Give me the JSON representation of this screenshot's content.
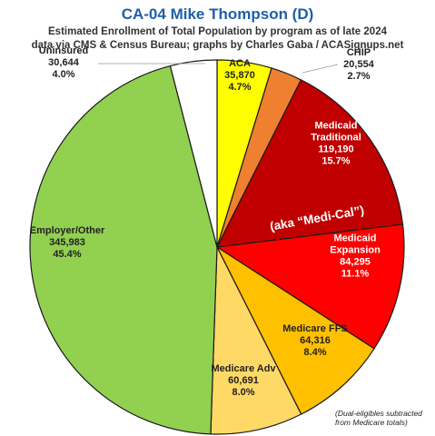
{
  "title": "CA-04 Mike Thompson (D)",
  "subtitle_lines": [
    "Estimated Enrollment of Total Population by program as of late 2024",
    "data via CMS & Census Bureau; graphs by Charles Gaba / ACASignups.net"
  ],
  "annotation_aka": "(aka “Medi-Cal”)",
  "note_lines": [
    "(Dual-eligibles subtracted",
    "from Medicare totals)"
  ],
  "chart_data": {
    "type": "pie",
    "title": "CA-04 Mike Thompson (D)",
    "slices": [
      {
        "name": "ACA",
        "value": 35870,
        "value_label": "35,870",
        "pct_label": "4.7%",
        "color": "#ffff00",
        "text_color": "#222222"
      },
      {
        "name": "CHIP",
        "value": 20554,
        "value_label": "20,554",
        "pct_label": "2.7%",
        "color": "#ef8030",
        "text_color": "#222222"
      },
      {
        "name": "Medicaid Traditional",
        "value": 119190,
        "value_label": "119,190",
        "pct_label": "15.7%",
        "color": "#c00000",
        "text_color": "#ffffff"
      },
      {
        "name": "Medicaid Expansion",
        "value": 84295,
        "value_label": "84,295",
        "pct_label": "11.1%",
        "color": "#ff0000",
        "text_color": "#ffffff"
      },
      {
        "name": "Medicare FFS",
        "value": 64316,
        "value_label": "64,316",
        "pct_label": "8.4%",
        "color": "#ffc000",
        "text_color": "#222222"
      },
      {
        "name": "Medicare Adv",
        "value": 60691,
        "value_label": "60,691",
        "pct_label": "8.0%",
        "color": "#ffd966",
        "text_color": "#222222"
      },
      {
        "name": "Employer/Other",
        "value": 345983,
        "value_label": "345,983",
        "pct_label": "45.4%",
        "color": "#92d050",
        "text_color": "#222222"
      },
      {
        "name": "Uninsured",
        "value": 30644,
        "value_label": "30,644",
        "pct_label": "4.0%",
        "color": "#ffffff",
        "text_color": "#222222"
      }
    ]
  }
}
